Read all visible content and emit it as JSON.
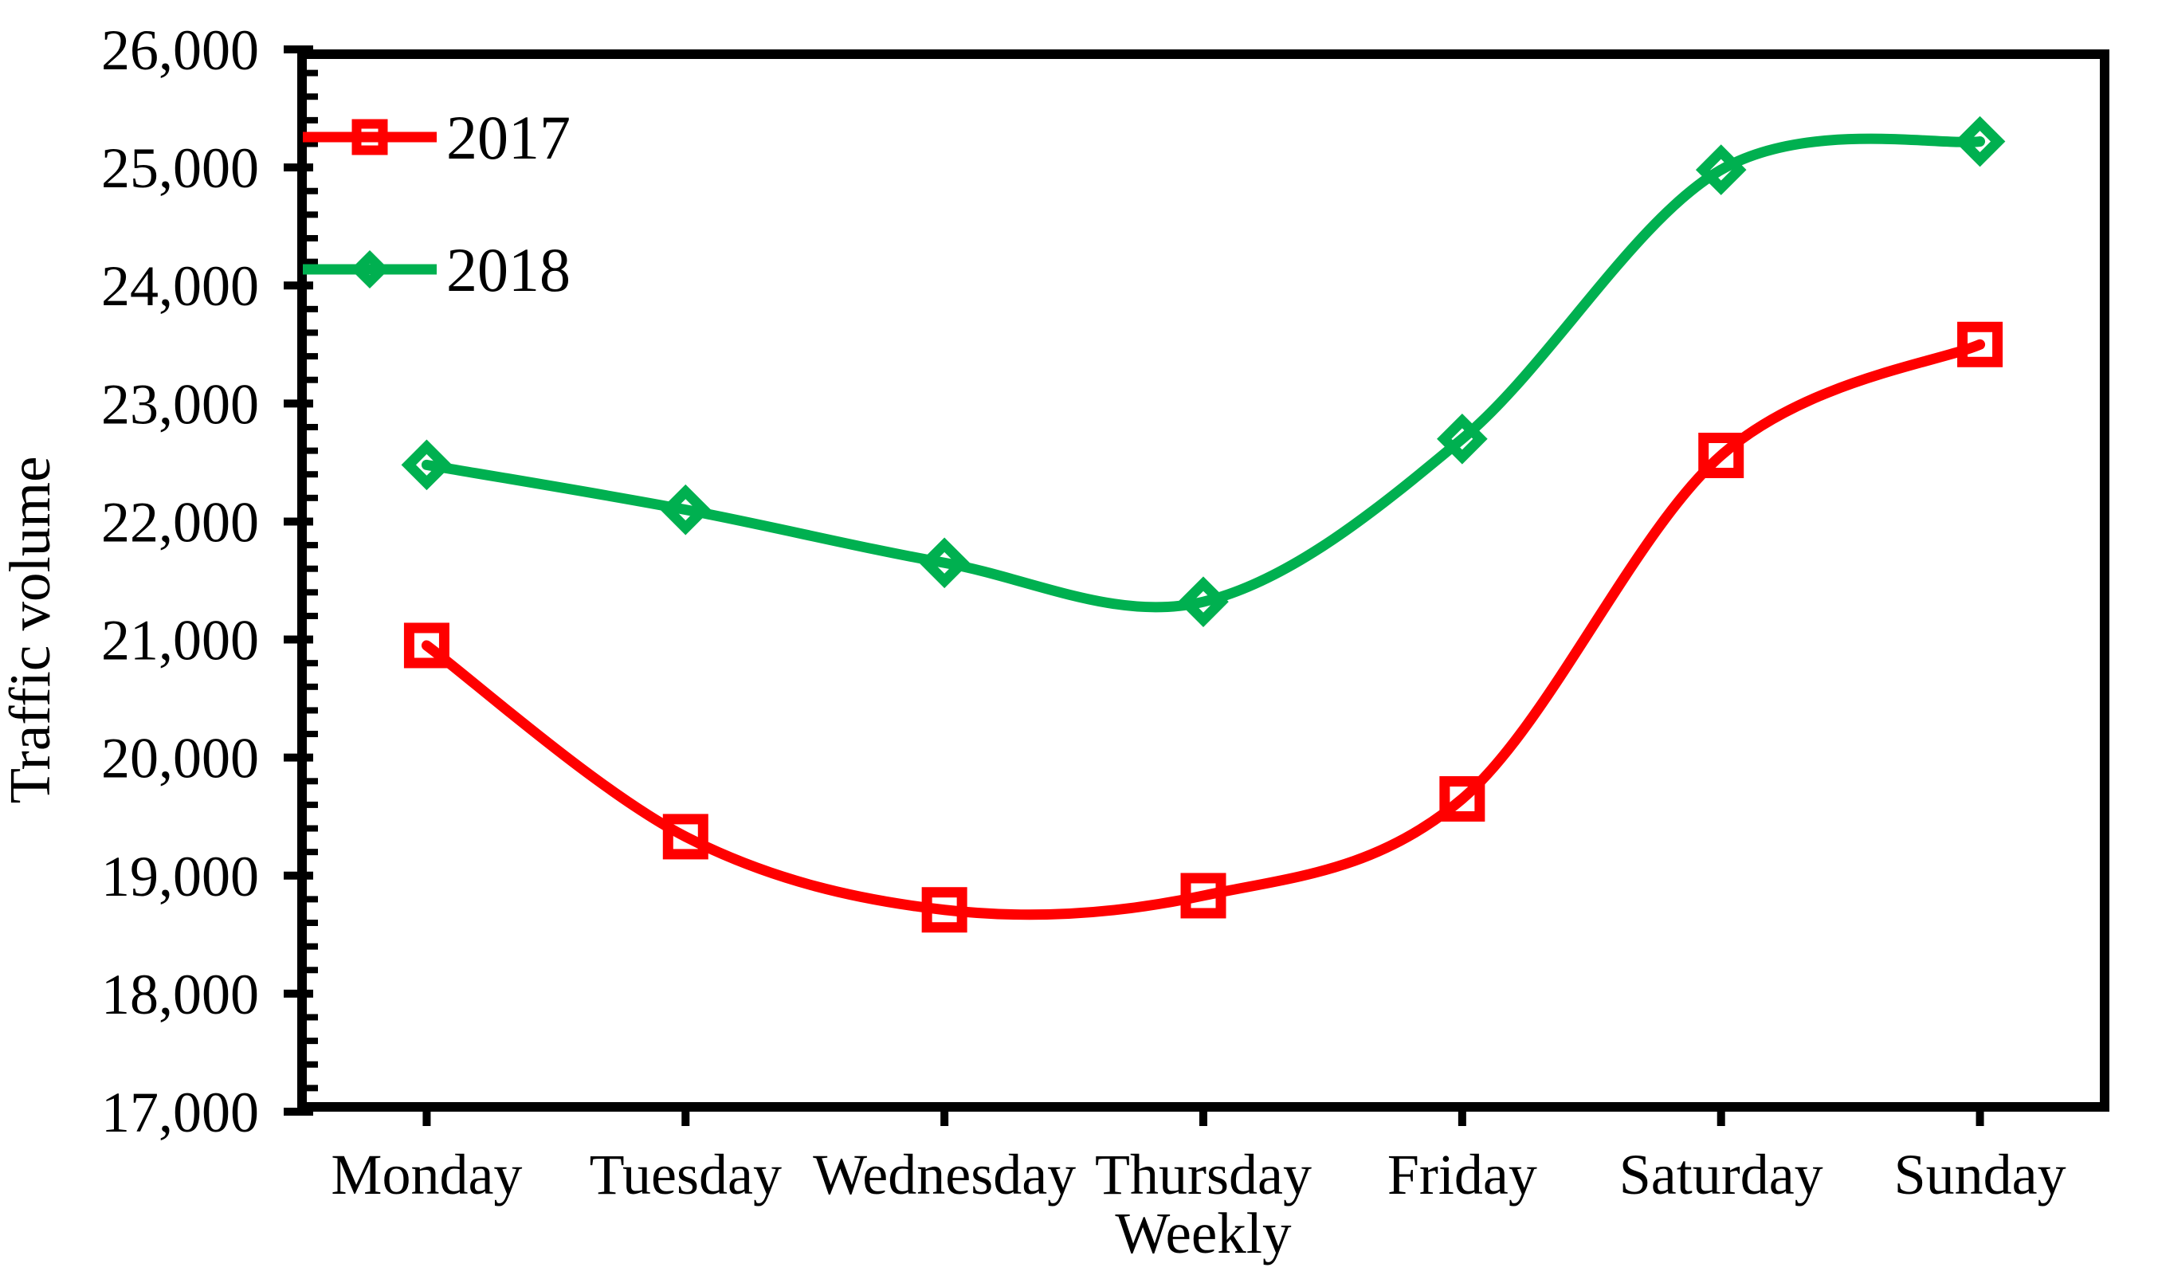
{
  "chart_data": {
    "type": "line",
    "title": "",
    "xlabel": "Weekly",
    "ylabel": "Traffic volume",
    "categories": [
      "Monday",
      "Tuesday",
      "Wednesday",
      "Thursday",
      "Friday",
      "Saturday",
      "Sunday"
    ],
    "series": [
      {
        "name": "2017",
        "color": "#FF0000",
        "marker": "square",
        "values": [
          20950,
          19330,
          18710,
          18830,
          19650,
          22560,
          23500
        ]
      },
      {
        "name": "2018",
        "color": "#00B050",
        "marker": "diamond",
        "values": [
          22480,
          22100,
          21650,
          21320,
          22700,
          24980,
          25220
        ]
      }
    ],
    "y_axis": {
      "min": 17000,
      "max": 26000,
      "major_step": 1000,
      "minor_step": 200,
      "tick_labels": [
        "17,000",
        "18,000",
        "19,000",
        "20,000",
        "21,000",
        "22,000",
        "23,000",
        "24,000",
        "25,000",
        "26,000"
      ]
    },
    "x_axis": {
      "tick_labels": [
        "Monday",
        "Tuesday",
        "Wednesday",
        "Thursday",
        "Friday",
        "Saturday",
        "Sunday"
      ]
    },
    "legend": {
      "position": "top-left-inside",
      "entries": [
        "2017",
        "2018"
      ]
    },
    "grid": false,
    "colors": {
      "axis": "#000000",
      "background": "#ffffff"
    }
  }
}
